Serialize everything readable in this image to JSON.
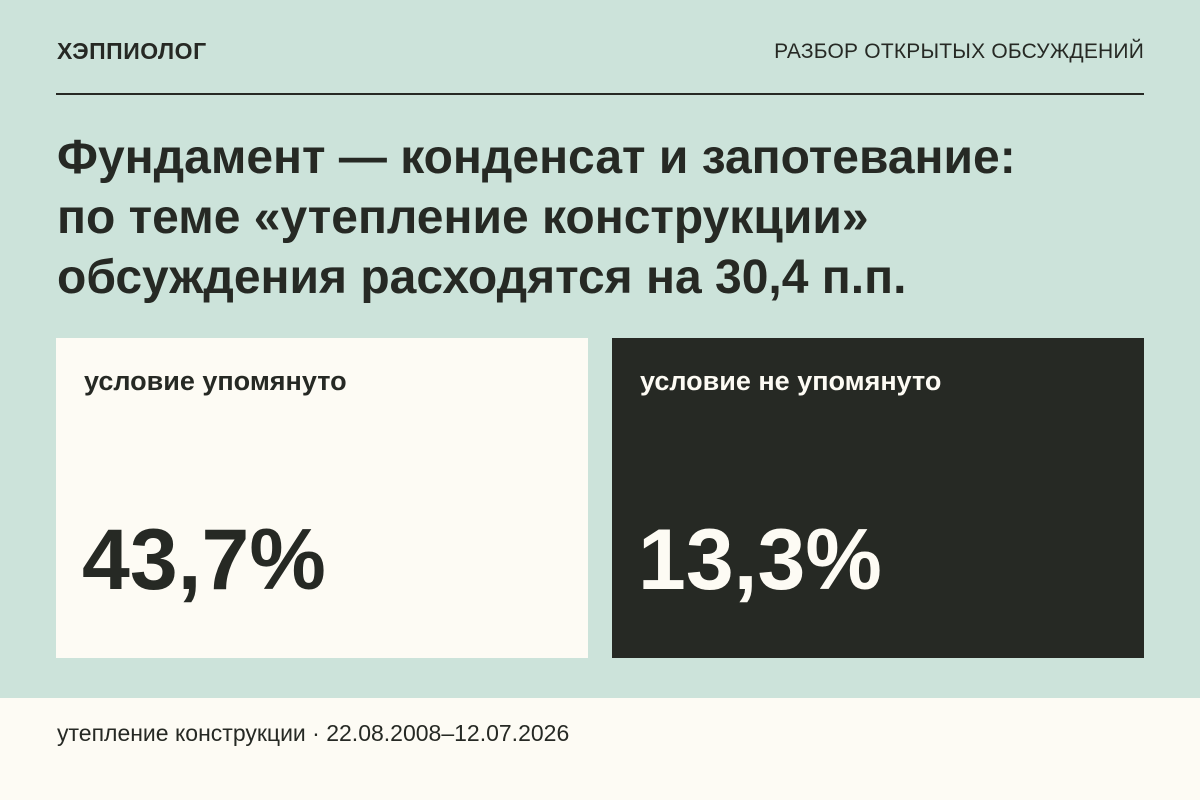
{
  "header": {
    "brand": "ХЭППИОЛОГ",
    "section": "РАЗБОР ОТКРЫТЫХ ОБСУЖДЕНИЙ"
  },
  "headline": {
    "lines": [
      "Фундамент — конденсат и запотевание:",
      "по теме «утепление конструкции»",
      "обсуждения расходятся на 30,4 п.п."
    ]
  },
  "cards": [
    {
      "label": "условие упомянуто",
      "value": "43,7%"
    },
    {
      "label": "условие не упомянуто",
      "value": "13,3%"
    }
  ],
  "footer": {
    "text": "утепление конструкции · 22.08.2008–12.07.2026"
  },
  "colors": {
    "background": "#cce3da",
    "dark": "#262924",
    "light": "#fdfbf4"
  }
}
